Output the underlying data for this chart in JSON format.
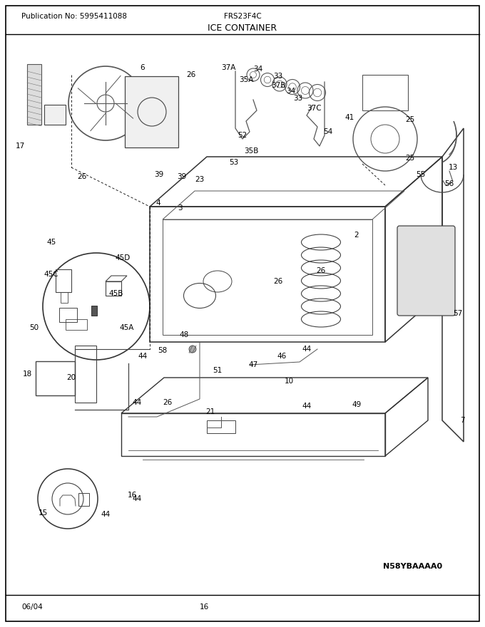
{
  "pub_no": "Publication No: 5995411088",
  "model": "FRS23F4C",
  "title": "ICE CONTAINER",
  "date": "06/04",
  "page": "16",
  "part_code": "N58YBAAAA0",
  "fig_width": 6.8,
  "fig_height": 8.8,
  "dpi": 100,
  "bg_color": "#ffffff",
  "border_color": "#000000",
  "text_color": "#000000"
}
